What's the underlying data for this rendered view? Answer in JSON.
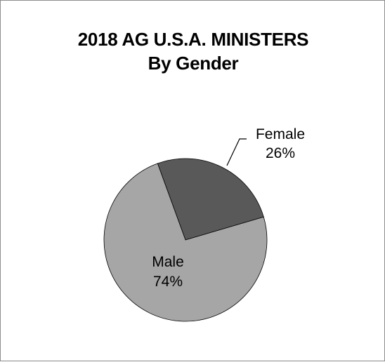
{
  "chart_data": {
    "type": "pie",
    "title": "2018 AG U.S.A. MINISTERS",
    "subtitle": "By Gender",
    "slices": [
      {
        "label": "Female",
        "value": 26,
        "value_label": "26%",
        "color": "#595959"
      },
      {
        "label": "Male",
        "value": 74,
        "value_label": "74%",
        "color": "#a6a6a6"
      }
    ],
    "start_angle_deg": -20,
    "legend": "none"
  }
}
